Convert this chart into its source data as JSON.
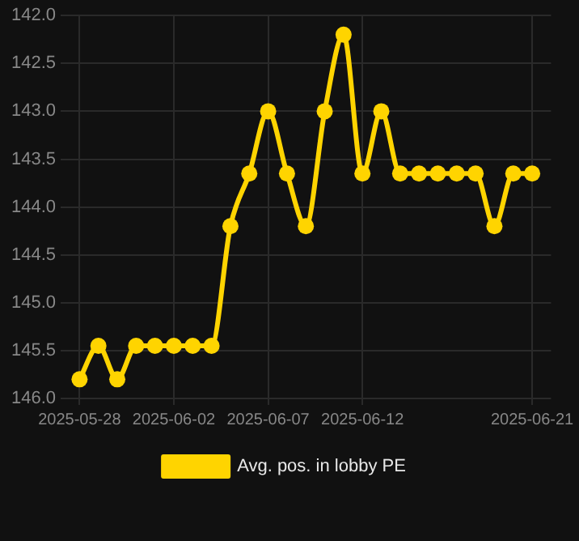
{
  "chart_data": {
    "type": "line",
    "x": [
      "2025-05-28",
      "2025-05-29",
      "2025-05-30",
      "2025-05-31",
      "2025-06-01",
      "2025-06-02",
      "2025-06-03",
      "2025-06-04",
      "2025-06-05",
      "2025-06-06",
      "2025-06-07",
      "2025-06-08",
      "2025-06-09",
      "2025-06-10",
      "2025-06-11",
      "2025-06-12",
      "2025-06-13",
      "2025-06-14",
      "2025-06-15",
      "2025-06-16",
      "2025-06-17",
      "2025-06-18",
      "2025-06-19",
      "2025-06-20",
      "2025-06-21"
    ],
    "series": [
      {
        "name": "Avg. pos. in lobby PE",
        "color": "#ffd400",
        "values": [
          145.8,
          145.45,
          145.8,
          145.45,
          145.45,
          145.45,
          145.45,
          145.45,
          144.2,
          143.65,
          143.0,
          143.65,
          144.2,
          143.0,
          142.2,
          143.65,
          143.0,
          143.65,
          143.65,
          143.65,
          143.65,
          143.65,
          144.2,
          143.65,
          143.65
        ]
      }
    ],
    "xlim": [
      "2025-05-27",
      "2025-06-22"
    ],
    "xticks": [
      "2025-05-28",
      "2025-06-02",
      "2025-06-07",
      "2025-06-12",
      "2025-06-21"
    ],
    "ylim": [
      146.0,
      142.0
    ],
    "yticks": [
      {
        "value": 146.0,
        "label": "146.0"
      },
      {
        "value": 145.5,
        "label": "145.5"
      },
      {
        "value": 145.0,
        "label": "145.0"
      },
      {
        "value": 144.5,
        "label": "144.5"
      },
      {
        "value": 144.0,
        "label": "144.0"
      },
      {
        "value": 143.5,
        "label": "143.5"
      },
      {
        "value": 143.0,
        "label": "143.0"
      },
      {
        "value": 142.5,
        "label": "142.5"
      },
      {
        "value": 142.0,
        "label": "142.0"
      }
    ],
    "grid": true,
    "legend": "bottom",
    "marker": "circle",
    "line_style": "solid"
  }
}
